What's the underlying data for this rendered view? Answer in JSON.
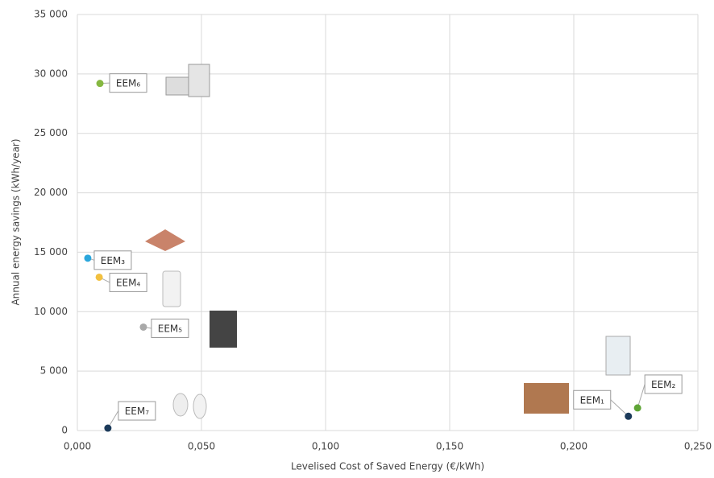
{
  "chart_data": {
    "type": "scatter",
    "x_label": "Levelised Cost of Saved Energy (€/kWh)",
    "y_label": "Annual energy savings (kWh/year)",
    "xlim": [
      0,
      0.25
    ],
    "xticks": [
      {
        "value": 0,
        "label": "0,000"
      },
      {
        "value": 0.05,
        "label": "0,050"
      },
      {
        "value": 0.1,
        "label": "0,100"
      },
      {
        "value": 0.15,
        "label": "0,150"
      },
      {
        "value": 0.2,
        "label": "0,200"
      },
      {
        "value": 0.25,
        "label": "0,250"
      }
    ],
    "ylim": [
      0,
      35000
    ],
    "yticks": [
      0,
      {
        "value": 5000,
        "label": "5 000"
      },
      {
        "value": 10000,
        "label": "10 000"
      },
      {
        "value": 15000,
        "label": "15 000"
      },
      {
        "value": 20000,
        "label": "20 000"
      },
      {
        "value": 25000,
        "label": "25 000"
      },
      {
        "value": 30000,
        "label": "30 000"
      },
      {
        "value": 35000,
        "label": "35 000"
      }
    ],
    "grid": true,
    "series": [
      {
        "name": "EEM₁",
        "color": "#1b3a5a",
        "x": [
          0.222
        ],
        "values": [
          1200
        ]
      },
      {
        "name": "EEM₂",
        "color": "#5fa536",
        "x": [
          0.2257
        ],
        "values": [
          1900
        ]
      },
      {
        "name": "EEM₃",
        "color": "#2aa6dc",
        "x": [
          0.0042
        ],
        "values": [
          14500
        ]
      },
      {
        "name": "EEM₄",
        "color": "#f2c040",
        "x": [
          0.0088
        ],
        "values": [
          12900
        ]
      },
      {
        "name": "EEM₅",
        "color": "#a9a9a9",
        "x": [
          0.0266
        ],
        "values": [
          8700
        ]
      },
      {
        "name": "EEM₆",
        "color": "#86b841",
        "x": [
          0.0091
        ],
        "values": [
          29200
        ]
      },
      {
        "name": "EEM₇",
        "color": "#1b3a5a",
        "x": [
          0.0123
        ],
        "values": [
          200
        ]
      }
    ]
  }
}
